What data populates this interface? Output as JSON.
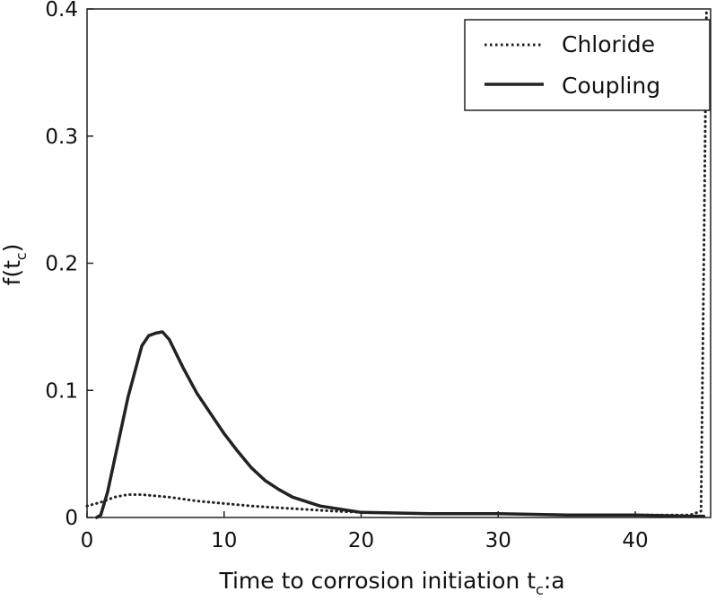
{
  "chart_data": {
    "type": "line",
    "xlabel": {
      "main": "Time to corrosion initiation t",
      "sub": "c",
      "suffix": ":a"
    },
    "ylabel": {
      "main": "f(t",
      "sub": "c",
      "suffix": ")"
    },
    "xlim": [
      0,
      45.5
    ],
    "ylim": [
      0,
      0.4
    ],
    "xticks": [
      {
        "value": 0,
        "label": "0"
      },
      {
        "value": 10,
        "label": "10"
      },
      {
        "value": 20,
        "label": "20"
      },
      {
        "value": 30,
        "label": "30"
      },
      {
        "value": 40,
        "label": "40"
      }
    ],
    "yticks": [
      {
        "value": 0,
        "label": "0"
      },
      {
        "value": 0.1,
        "label": "0.1"
      },
      {
        "value": 0.2,
        "label": "0.2"
      },
      {
        "value": 0.3,
        "label": "0.3"
      },
      {
        "value": 0.4,
        "label": "0.4"
      }
    ],
    "grid": false,
    "legend_position": "top-right",
    "series": [
      {
        "name": "Chloride",
        "style": "dotted",
        "color": "#222222",
        "x": [
          0,
          1,
          2,
          3,
          4,
          5,
          6,
          8,
          10,
          12,
          15,
          18,
          20,
          25,
          30,
          35,
          40,
          44,
          44.8,
          45,
          45.2
        ],
        "y": [
          0.009,
          0.012,
          0.016,
          0.018,
          0.018,
          0.017,
          0.016,
          0.013,
          0.011,
          0.009,
          0.007,
          0.005,
          0.004,
          0.003,
          0.003,
          0.002,
          0.002,
          0.002,
          0.005,
          0.2,
          0.4
        ]
      },
      {
        "name": "Coupling",
        "style": "solid",
        "color": "#222222",
        "x": [
          0.7,
          1,
          1.5,
          2,
          3,
          4,
          4.5,
          5,
          5.5,
          6,
          7,
          8,
          9,
          10,
          11,
          12,
          13,
          14,
          15,
          17,
          20,
          25,
          30,
          35,
          40,
          42,
          44,
          45
        ],
        "y": [
          0,
          0.002,
          0.02,
          0.045,
          0.095,
          0.135,
          0.143,
          0.145,
          0.146,
          0.14,
          0.118,
          0.098,
          0.082,
          0.066,
          0.052,
          0.039,
          0.029,
          0.022,
          0.016,
          0.009,
          0.004,
          0.003,
          0.003,
          0.002,
          0.002,
          0.0015,
          0.001,
          0.001
        ]
      }
    ]
  }
}
